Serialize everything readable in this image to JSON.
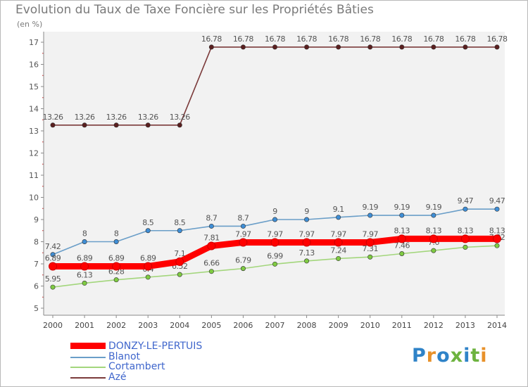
{
  "header": {
    "title": "Evolution du Taux de Taxe Foncière sur les Propriétés Bâties",
    "unit": "(en %)"
  },
  "logo": {
    "text": "Proxiti",
    "letters": [
      "P",
      "r",
      "o",
      "x",
      "i",
      "t",
      "i"
    ],
    "colors": [
      "#2f83c8",
      "#e8912a",
      "#2f83c8",
      "#6db33f",
      "#2f83c8",
      "#6db33f",
      "#e8912a"
    ]
  },
  "chart_data": {
    "type": "line",
    "title": "Evolution du Taux de Taxe Foncière sur les Propriétés Bâties",
    "ylabel": "(en %)",
    "xlabel": "",
    "categories": [
      "2000",
      "2001",
      "2002",
      "2003",
      "2004",
      "2005",
      "2006",
      "2007",
      "2008",
      "2009",
      "2010",
      "2011",
      "2012",
      "2013",
      "2014"
    ],
    "ylim": [
      5,
      17
    ],
    "yticks": [
      5,
      6,
      7,
      8,
      9,
      10,
      11,
      12,
      13,
      14,
      15,
      16,
      17
    ],
    "legend_position": "bottom-left",
    "series": [
      {
        "name": "Azé",
        "color": "#7b3a3a",
        "marker": "#5a1f1f",
        "values": [
          13.26,
          13.26,
          13.26,
          13.26,
          13.26,
          16.78,
          16.78,
          16.78,
          16.78,
          16.78,
          16.78,
          16.78,
          16.78,
          16.78,
          16.78
        ],
        "labels": [
          "13.26",
          "13.26",
          "13.26",
          "13.26",
          "13.26",
          "16.78",
          "16.78",
          "16.78",
          "16.78",
          "16.78",
          "16.78",
          "16.78",
          "16.78",
          "16.78",
          "16.78"
        ]
      },
      {
        "name": "Blanot",
        "color": "#6a9ec8",
        "marker": "#3f8ed6",
        "values": [
          7.42,
          8,
          8,
          8.5,
          8.5,
          8.7,
          8.7,
          9,
          9,
          9.1,
          9.19,
          9.19,
          9.19,
          9.47,
          9.47
        ],
        "labels": [
          "7.42",
          "8",
          "8",
          "8.5",
          "8.5",
          "8.7",
          "8.7",
          "9",
          "9",
          "9.1",
          "9.19",
          "9.19",
          "9.19",
          "9.47",
          "9.47"
        ]
      },
      {
        "name": "Cortambert",
        "color": "#a3d67c",
        "marker": "#7fcb42",
        "values": [
          5.95,
          6.13,
          6.28,
          6.4,
          6.52,
          6.66,
          6.79,
          6.99,
          7.13,
          7.24,
          7.31,
          7.46,
          7.6,
          7.75,
          7.82
        ],
        "labels": [
          "5.95",
          "6.13",
          "6.28",
          "6.4",
          "6.52",
          "6.66",
          "6.79",
          "6.99",
          "7.13",
          "7.24",
          "7.31",
          "7.46",
          "7.6",
          "7.75",
          "7.82"
        ]
      },
      {
        "name": "DONZY-LE-PERTUIS",
        "color": "#ff0000",
        "marker": "#ff0000",
        "values": [
          6.89,
          6.89,
          6.89,
          6.89,
          7.1,
          7.81,
          7.97,
          7.97,
          7.97,
          7.97,
          7.97,
          8.13,
          8.13,
          8.13,
          8.13
        ],
        "labels": [
          "6.89",
          "6.89",
          "6.89",
          "6.89",
          "7.1",
          "7.81",
          "7.97",
          "7.97",
          "7.97",
          "7.97",
          "7.97",
          "8.13",
          "8.13",
          "8.13",
          "8.13"
        ]
      }
    ]
  },
  "legend": {
    "items": [
      {
        "label": "DONZY-LE-PERTUIS",
        "color": "#ff0000"
      },
      {
        "label": "Blanot",
        "color": "#6a9ec8"
      },
      {
        "label": "Cortambert",
        "color": "#a3d67c"
      },
      {
        "label": "Azé",
        "color": "#7b3a3a"
      }
    ]
  }
}
